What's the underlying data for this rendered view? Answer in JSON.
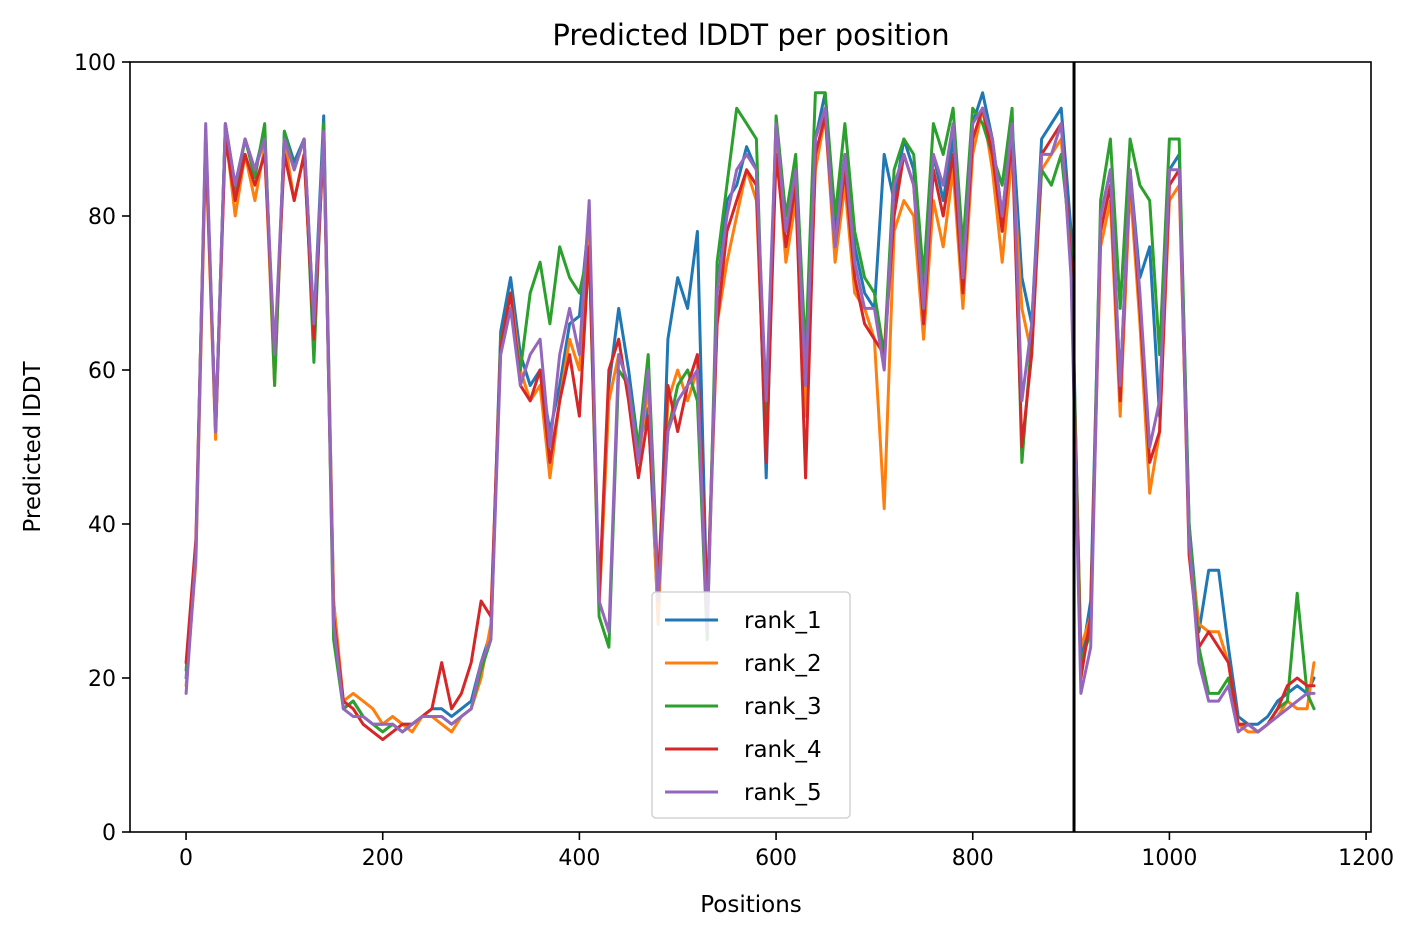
{
  "chart_data": {
    "type": "line",
    "title": "Predicted lDDT per position",
    "xlabel": "Positions",
    "ylabel": "Predicted lDDT",
    "xlim": [
      -57,
      1205
    ],
    "ylim": [
      0,
      100
    ],
    "xticks": [
      0,
      200,
      400,
      600,
      800,
      1000,
      1200
    ],
    "yticks": [
      0,
      20,
      40,
      60,
      80,
      100
    ],
    "grid": false,
    "legend_position": "bottom-center",
    "vertical_line_x": 903,
    "x": [
      0,
      10,
      20,
      30,
      40,
      50,
      60,
      70,
      80,
      90,
      100,
      110,
      120,
      130,
      140,
      150,
      160,
      170,
      180,
      190,
      200,
      210,
      220,
      230,
      240,
      250,
      260,
      270,
      280,
      290,
      300,
      310,
      320,
      330,
      340,
      350,
      360,
      370,
      380,
      390,
      400,
      410,
      420,
      430,
      440,
      450,
      460,
      470,
      480,
      490,
      500,
      510,
      520,
      530,
      540,
      550,
      560,
      570,
      580,
      590,
      600,
      610,
      620,
      630,
      640,
      650,
      660,
      670,
      680,
      690,
      700,
      710,
      720,
      730,
      740,
      750,
      760,
      770,
      780,
      790,
      800,
      810,
      820,
      830,
      840,
      850,
      860,
      870,
      880,
      890,
      900,
      910,
      920,
      930,
      940,
      950,
      960,
      970,
      980,
      990,
      1000,
      1010,
      1020,
      1030,
      1040,
      1050,
      1060,
      1070,
      1080,
      1090,
      1100,
      1110,
      1120,
      1130,
      1140,
      1147
    ],
    "series": [
      {
        "name": "rank_1",
        "color": "#1f77b4",
        "values": [
          20,
          36,
          90,
          52,
          92,
          84,
          90,
          86,
          91,
          59,
          91,
          87,
          90,
          66,
          93,
          30,
          16,
          17,
          15,
          14,
          14,
          15,
          14,
          14,
          15,
          16,
          16,
          15,
          16,
          17,
          22,
          26,
          65,
          72,
          62,
          58,
          60,
          52,
          58,
          66,
          67,
          80,
          30,
          58,
          68,
          60,
          50,
          55,
          28,
          64,
          72,
          68,
          78,
          28,
          70,
          82,
          84,
          89,
          86,
          46,
          92,
          78,
          86,
          60,
          90,
          96,
          78,
          88,
          76,
          70,
          68,
          88,
          82,
          90,
          86,
          70,
          88,
          82,
          90,
          74,
          92,
          96,
          90,
          80,
          92,
          72,
          66,
          90,
          92,
          94,
          78,
          22,
          30,
          80,
          86,
          58,
          86,
          72,
          76,
          54,
          86,
          88,
          40,
          26,
          34,
          34,
          24,
          15,
          14,
          14,
          15,
          17,
          18,
          19,
          18,
          20
        ]
      },
      {
        "name": "rank_2",
        "color": "#ff7f0e",
        "values": [
          19,
          35,
          89,
          51,
          91,
          80,
          88,
          82,
          89,
          58,
          90,
          82,
          88,
          64,
          91,
          30,
          17,
          18,
          17,
          16,
          14,
          15,
          14,
          13,
          15,
          15,
          14,
          13,
          15,
          16,
          20,
          27,
          63,
          70,
          60,
          56,
          58,
          46,
          56,
          64,
          60,
          78,
          29,
          56,
          62,
          58,
          48,
          58,
          27,
          56,
          60,
          56,
          60,
          28,
          66,
          74,
          80,
          86,
          82,
          50,
          90,
          74,
          82,
          54,
          86,
          93,
          74,
          84,
          70,
          68,
          64,
          42,
          78,
          82,
          80,
          64,
          82,
          76,
          86,
          68,
          88,
          94,
          86,
          74,
          88,
          68,
          62,
          86,
          88,
          90,
          74,
          24,
          28,
          76,
          82,
          54,
          84,
          66,
          44,
          52,
          82,
          84,
          38,
          27,
          26,
          26,
          22,
          14,
          13,
          13,
          14,
          15,
          17,
          16,
          16,
          22
        ]
      },
      {
        "name": "rank_3",
        "color": "#2ca02c",
        "values": [
          21,
          37,
          91,
          52,
          92,
          83,
          90,
          85,
          92,
          58,
          91,
          86,
          90,
          61,
          92,
          25,
          16,
          17,
          15,
          14,
          13,
          14,
          13,
          14,
          15,
          15,
          15,
          14,
          15,
          16,
          21,
          25,
          64,
          68,
          60,
          70,
          74,
          66,
          76,
          72,
          70,
          76,
          28,
          24,
          60,
          58,
          50,
          62,
          32,
          52,
          58,
          60,
          56,
          25,
          74,
          84,
          94,
          92,
          90,
          50,
          93,
          80,
          88,
          62,
          96,
          96,
          80,
          92,
          78,
          72,
          70,
          62,
          86,
          90,
          88,
          72,
          92,
          88,
          94,
          76,
          94,
          92,
          88,
          84,
          94,
          48,
          64,
          86,
          84,
          88,
          76,
          22,
          26,
          82,
          90,
          68,
          90,
          84,
          82,
          62,
          90,
          90,
          40,
          24,
          18,
          18,
          20,
          14,
          14,
          13,
          14,
          16,
          17,
          31,
          18,
          16
        ]
      },
      {
        "name": "rank_4",
        "color": "#d62728",
        "values": [
          22,
          38,
          90,
          52,
          90,
          82,
          88,
          84,
          88,
          62,
          88,
          82,
          88,
          64,
          90,
          28,
          17,
          16,
          14,
          13,
          12,
          13,
          14,
          14,
          15,
          16,
          22,
          16,
          18,
          22,
          30,
          28,
          63,
          70,
          58,
          56,
          60,
          48,
          56,
          62,
          54,
          76,
          30,
          60,
          64,
          56,
          46,
          54,
          32,
          58,
          52,
          58,
          62,
          30,
          66,
          78,
          82,
          86,
          84,
          48,
          88,
          76,
          84,
          46,
          88,
          93,
          76,
          86,
          72,
          66,
          64,
          62,
          80,
          88,
          84,
          66,
          86,
          80,
          88,
          70,
          90,
          94,
          88,
          78,
          90,
          50,
          62,
          88,
          90,
          92,
          74,
          20,
          28,
          78,
          84,
          56,
          86,
          68,
          48,
          52,
          84,
          86,
          36,
          24,
          26,
          24,
          22,
          14,
          14,
          13,
          14,
          16,
          19,
          20,
          19,
          19
        ]
      },
      {
        "name": "rank_5",
        "color": "#9467bd",
        "values": [
          18,
          36,
          92,
          52,
          92,
          84,
          90,
          86,
          90,
          62,
          90,
          86,
          90,
          66,
          91,
          27,
          16,
          15,
          15,
          14,
          14,
          14,
          13,
          14,
          15,
          15,
          15,
          14,
          15,
          16,
          22,
          25,
          62,
          68,
          58,
          62,
          64,
          50,
          62,
          68,
          62,
          82,
          30,
          26,
          62,
          58,
          48,
          60,
          30,
          52,
          56,
          58,
          60,
          26,
          70,
          80,
          86,
          88,
          86,
          56,
          92,
          78,
          86,
          58,
          90,
          94,
          76,
          88,
          74,
          68,
          68,
          60,
          84,
          88,
          84,
          68,
          88,
          84,
          92,
          72,
          92,
          94,
          90,
          80,
          92,
          56,
          66,
          88,
          88,
          92,
          72,
          18,
          24,
          80,
          86,
          58,
          86,
          70,
          50,
          56,
          86,
          86,
          38,
          22,
          17,
          17,
          19,
          13,
          14,
          13,
          14,
          15,
          16,
          17,
          18,
          18
        ]
      }
    ]
  }
}
